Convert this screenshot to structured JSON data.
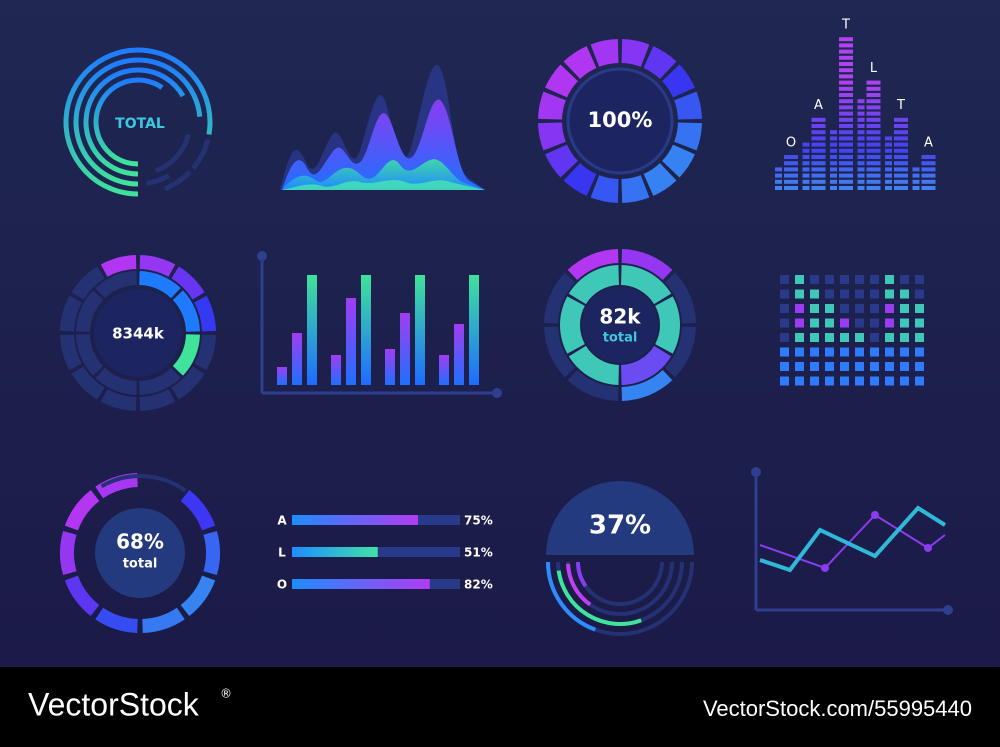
{
  "widgets": {
    "total_ring": {
      "label": "TOTAL"
    },
    "percent_ring": {
      "label": "100%"
    },
    "letter_bars": {
      "letters": [
        "O",
        "A",
        "T",
        "L",
        "T",
        "A"
      ]
    },
    "ring_8344k": {
      "label": "8344k"
    },
    "ring_82k": {
      "value": "82k",
      "caption": "total"
    },
    "ring_68": {
      "value": "68%",
      "caption": "total"
    },
    "progress": {
      "rows": [
        {
          "label": "A",
          "value": 75,
          "value_label": "75%"
        },
        {
          "label": "L",
          "value": 51,
          "value_label": "51%"
        },
        {
          "label": "O",
          "value": 82,
          "value_label": "82%"
        }
      ]
    },
    "half_ring": {
      "label": "37%"
    }
  },
  "footer": {
    "brand": "VectorStock",
    "reg": "®",
    "id": "VectorStock.com/55995440"
  }
}
